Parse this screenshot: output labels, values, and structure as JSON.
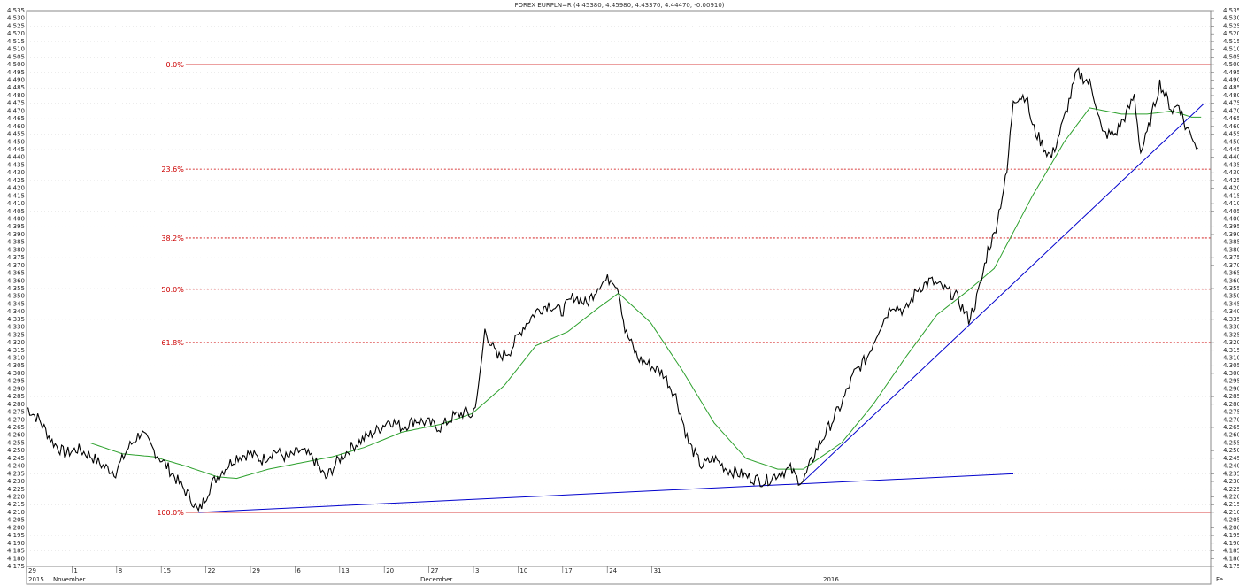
{
  "chart_data": {
    "type": "line",
    "title": "FOREX EURPLN=R (4.45380, 4.45980, 4.43370, 4.44470, -0.00910)",
    "ylim": [
      4.175,
      4.535
    ],
    "y_tick_step": 0.005,
    "x_tick_labels": [
      "29",
      "1",
      "8",
      "15",
      "22",
      "29",
      "6",
      "13",
      "20",
      "27",
      "3",
      "10",
      "17",
      "24",
      "31"
    ],
    "x_month_labels": [
      "2015",
      "November",
      "December",
      "2016",
      "Fe"
    ],
    "grid": true,
    "colors": {
      "price": "#000000",
      "moving_average": "#2ca02c",
      "trendline": "#0000cc",
      "fib_line": "#cc0000",
      "fib_text": "#cc0000",
      "background": "#ffffff",
      "grid": "#d8d8d8"
    },
    "fibonacci": [
      {
        "label": "0.0%",
        "value": 4.5
      },
      {
        "label": "23.6%",
        "value": 4.4323
      },
      {
        "label": "38.2%",
        "value": 4.3877
      },
      {
        "label": "50.0%",
        "value": 4.3545
      },
      {
        "label": "61.8%",
        "value": 4.3201
      },
      {
        "label": "100.0%",
        "value": 4.21
      }
    ],
    "price_keypoints": [
      [
        0,
        4.278
      ],
      [
        4,
        4.27
      ],
      [
        8,
        4.256
      ],
      [
        12,
        4.248
      ],
      [
        16,
        4.251
      ],
      [
        20,
        4.247
      ],
      [
        24,
        4.24
      ],
      [
        28,
        4.236
      ],
      [
        32,
        4.252
      ],
      [
        36,
        4.262
      ],
      [
        40,
        4.25
      ],
      [
        44,
        4.24
      ],
      [
        48,
        4.229
      ],
      [
        52,
        4.218
      ],
      [
        54,
        4.21
      ],
      [
        58,
        4.228
      ],
      [
        62,
        4.238
      ],
      [
        66,
        4.246
      ],
      [
        70,
        4.248
      ],
      [
        74,
        4.244
      ],
      [
        78,
        4.25
      ],
      [
        82,
        4.245
      ],
      [
        86,
        4.25
      ],
      [
        90,
        4.245
      ],
      [
        94,
        4.232
      ],
      [
        98,
        4.244
      ],
      [
        102,
        4.252
      ],
      [
        106,
        4.258
      ],
      [
        110,
        4.263
      ],
      [
        114,
        4.27
      ],
      [
        118,
        4.265
      ],
      [
        122,
        4.27
      ],
      [
        126,
        4.268
      ],
      [
        130,
        4.265
      ],
      [
        134,
        4.272
      ],
      [
        138,
        4.275
      ],
      [
        140,
        4.272
      ],
      [
        142,
        4.29
      ],
      [
        144,
        4.328
      ],
      [
        148,
        4.31
      ],
      [
        152,
        4.315
      ],
      [
        156,
        4.33
      ],
      [
        160,
        4.34
      ],
      [
        164,
        4.345
      ],
      [
        168,
        4.34
      ],
      [
        172,
        4.35
      ],
      [
        176,
        4.345
      ],
      [
        180,
        4.358
      ],
      [
        184,
        4.362
      ],
      [
        186,
        4.355
      ],
      [
        188,
        4.328
      ],
      [
        192,
        4.31
      ],
      [
        196,
        4.305
      ],
      [
        200,
        4.3
      ],
      [
        204,
        4.285
      ],
      [
        208,
        4.255
      ],
      [
        212,
        4.24
      ],
      [
        216,
        4.245
      ],
      [
        220,
        4.238
      ],
      [
        224,
        4.235
      ],
      [
        228,
        4.232
      ],
      [
        232,
        4.23
      ],
      [
        236,
        4.235
      ],
      [
        240,
        4.238
      ],
      [
        242,
        4.232
      ],
      [
        244,
        4.23
      ],
      [
        248,
        4.25
      ],
      [
        252,
        4.265
      ],
      [
        256,
        4.28
      ],
      [
        260,
        4.3
      ],
      [
        264,
        4.31
      ],
      [
        268,
        4.33
      ],
      [
        272,
        4.345
      ],
      [
        276,
        4.34
      ],
      [
        280,
        4.355
      ],
      [
        284,
        4.36
      ],
      [
        288,
        4.355
      ],
      [
        292,
        4.35
      ],
      [
        296,
        4.335
      ],
      [
        298,
        4.345
      ],
      [
        300,
        4.36
      ],
      [
        302,
        4.38
      ],
      [
        304,
        4.39
      ],
      [
        308,
        4.43
      ],
      [
        310,
        4.478
      ],
      [
        314,
        4.48
      ],
      [
        316,
        4.46
      ],
      [
        320,
        4.445
      ],
      [
        322,
        4.44
      ],
      [
        326,
        4.465
      ],
      [
        330,
        4.495
      ],
      [
        334,
        4.488
      ],
      [
        336,
        4.475
      ],
      [
        338,
        4.455
      ],
      [
        342,
        4.455
      ],
      [
        346,
        4.47
      ],
      [
        348,
        4.48
      ],
      [
        350,
        4.443
      ],
      [
        352,
        4.455
      ],
      [
        356,
        4.488
      ],
      [
        360,
        4.47
      ],
      [
        362,
        4.475
      ],
      [
        364,
        4.46
      ],
      [
        366,
        4.455
      ],
      [
        368,
        4.445
      ]
    ],
    "ma_keypoints": [
      [
        20,
        4.255
      ],
      [
        30,
        4.248
      ],
      [
        40,
        4.246
      ],
      [
        50,
        4.24
      ],
      [
        60,
        4.233
      ],
      [
        66,
        4.232
      ],
      [
        76,
        4.238
      ],
      [
        86,
        4.242
      ],
      [
        96,
        4.246
      ],
      [
        106,
        4.252
      ],
      [
        118,
        4.262
      ],
      [
        130,
        4.267
      ],
      [
        140,
        4.274
      ],
      [
        150,
        4.292
      ],
      [
        160,
        4.318
      ],
      [
        170,
        4.327
      ],
      [
        180,
        4.343
      ],
      [
        186,
        4.352
      ],
      [
        196,
        4.333
      ],
      [
        206,
        4.302
      ],
      [
        216,
        4.268
      ],
      [
        226,
        4.245
      ],
      [
        236,
        4.238
      ],
      [
        244,
        4.238
      ],
      [
        256,
        4.255
      ],
      [
        266,
        4.28
      ],
      [
        276,
        4.31
      ],
      [
        286,
        4.338
      ],
      [
        296,
        4.354
      ],
      [
        304,
        4.368
      ],
      [
        316,
        4.415
      ],
      [
        326,
        4.45
      ],
      [
        334,
        4.472
      ],
      [
        344,
        4.468
      ],
      [
        352,
        4.468
      ],
      [
        360,
        4.47
      ],
      [
        366,
        4.466
      ],
      [
        369,
        4.466
      ]
    ],
    "trendlines": [
      {
        "from": [
          54,
          4.21
        ],
        "to": [
          310,
          4.235
        ]
      },
      {
        "from": [
          244,
          4.23
        ],
        "to": [
          370,
          4.475
        ]
      }
    ]
  }
}
